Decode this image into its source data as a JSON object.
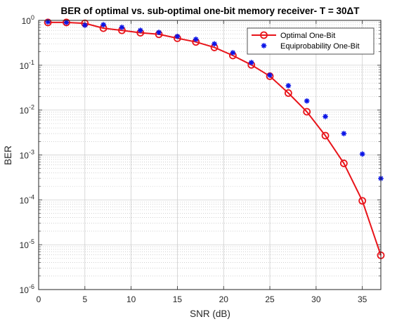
{
  "chart_data": {
    "type": "line",
    "title": "BER  of  optimal  vs.  sub-optimal  one-bit  memory  receiver-  T  =  30ΔT",
    "xlabel": "SNR (dB)",
    "ylabel": "BER",
    "xlim": [
      0,
      37
    ],
    "ylim": [
      1e-06,
      1
    ],
    "yscale": "log",
    "grid": true,
    "minor_grid": true,
    "legend_position": "top-right",
    "x_ticks": [
      0,
      5,
      10,
      15,
      20,
      25,
      30,
      35
    ],
    "y_ticks": [
      {
        "value": 1e-06,
        "base": "10",
        "exp": "-6"
      },
      {
        "value": 1e-05,
        "base": "10",
        "exp": "-5"
      },
      {
        "value": 0.0001,
        "base": "10",
        "exp": "-4"
      },
      {
        "value": 0.001,
        "base": "10",
        "exp": "-3"
      },
      {
        "value": 0.01,
        "base": "10",
        "exp": "-2"
      },
      {
        "value": 0.1,
        "base": "10",
        "exp": "-1"
      },
      {
        "value": 1,
        "base": "10",
        "exp": "0"
      }
    ],
    "series": [
      {
        "name": "Optimal One-Bit",
        "color": "#e8141a",
        "marker": "circle",
        "line": true,
        "x": [
          1,
          3,
          5,
          7,
          9,
          11,
          13,
          15,
          17,
          19,
          21,
          23,
          25,
          27,
          29,
          31,
          33,
          35,
          37
        ],
        "y": [
          0.9,
          0.9,
          0.86,
          0.67,
          0.6,
          0.53,
          0.49,
          0.4,
          0.33,
          0.25,
          0.165,
          0.102,
          0.057,
          0.024,
          0.0092,
          0.0027,
          0.00065,
          9.5e-05,
          5.8e-06
        ]
      },
      {
        "name": "Equiprobability One-Bit",
        "color": "#0a14e6",
        "marker": "asterisk",
        "line": false,
        "x": [
          1,
          3,
          5,
          7,
          9,
          11,
          13,
          15,
          17,
          19,
          21,
          23,
          25,
          27,
          29,
          31,
          33,
          35,
          37
        ],
        "y": [
          0.93,
          0.9,
          0.78,
          0.8,
          0.7,
          0.6,
          0.54,
          0.44,
          0.38,
          0.3,
          0.19,
          0.115,
          0.06,
          0.035,
          0.016,
          0.0072,
          0.003,
          0.00105,
          0.0003
        ]
      }
    ]
  }
}
